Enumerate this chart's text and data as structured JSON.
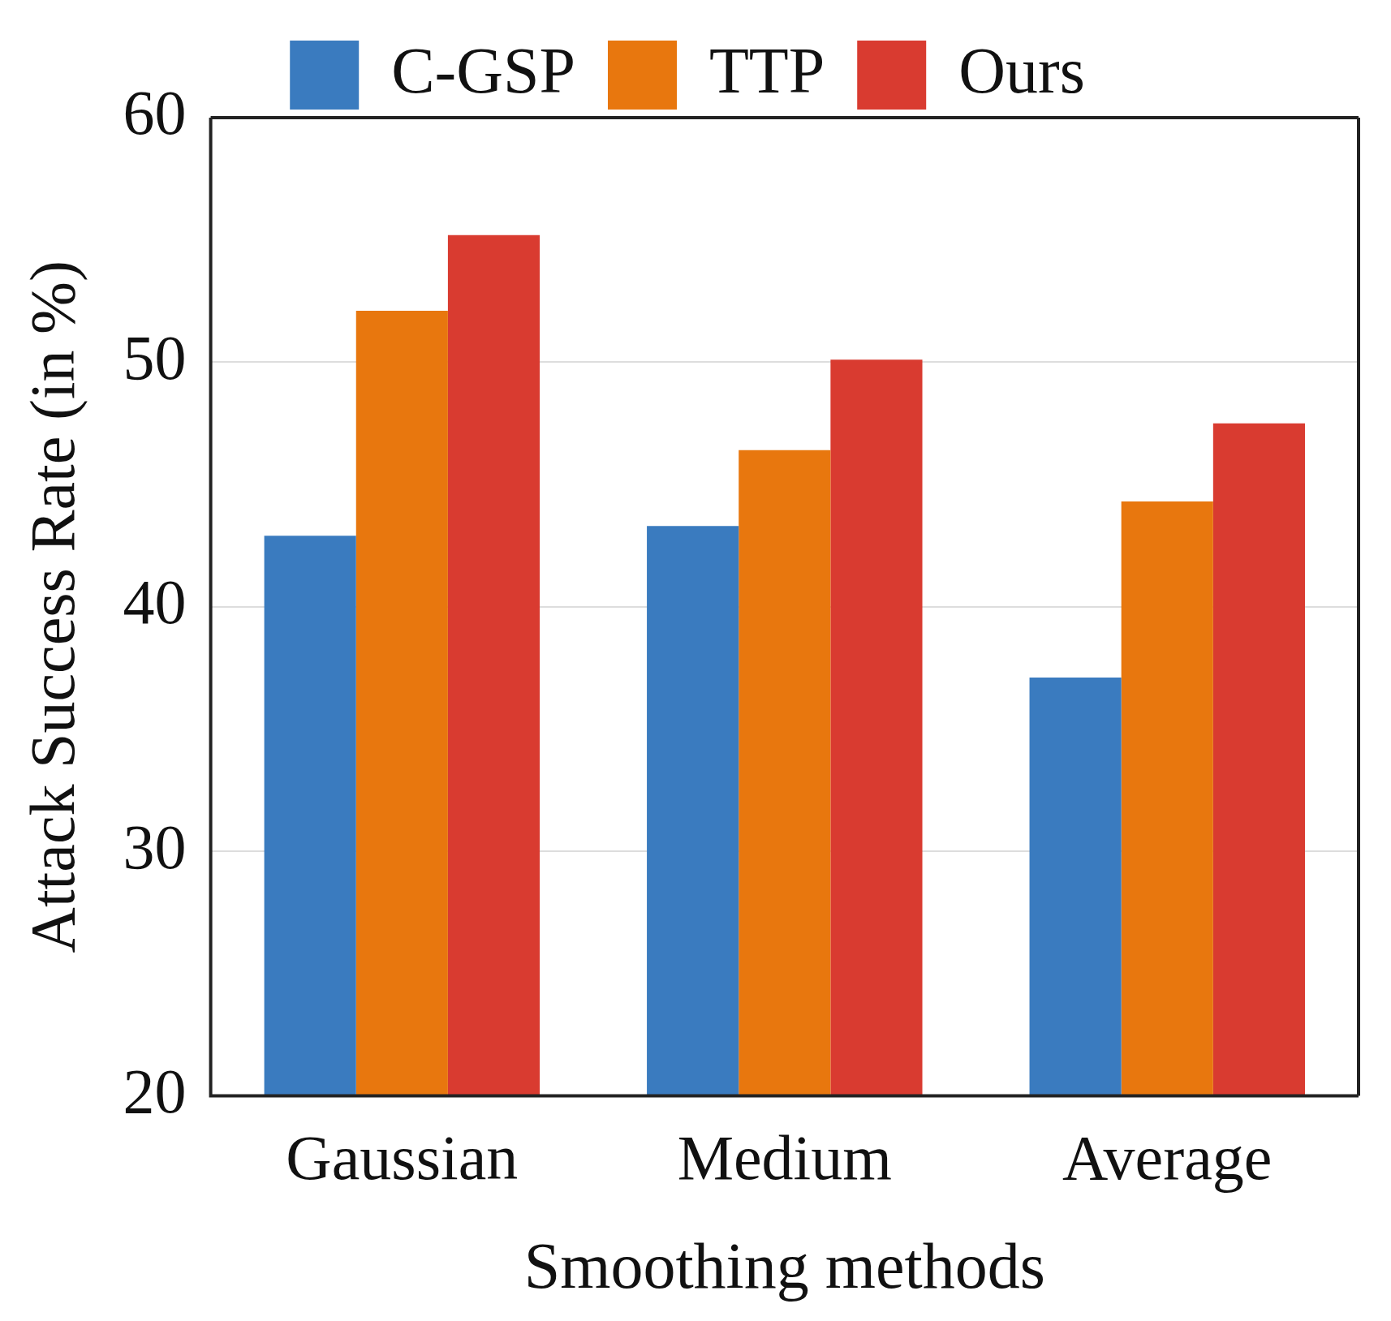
{
  "chart_data": {
    "type": "bar",
    "xlabel": "Smoothing methods",
    "ylabel": "Attack Success Rate (in %)",
    "categories": [
      "Gaussian",
      "Medium",
      "Average"
    ],
    "series": [
      {
        "name": "C-GSP",
        "color": "#3a7bbf",
        "values": [
          42.9,
          43.3,
          37.1
        ]
      },
      {
        "name": "TTP",
        "color": "#e8770e",
        "values": [
          52.1,
          46.4,
          44.3
        ]
      },
      {
        "name": "Ours",
        "color": "#d93b30",
        "values": [
          55.2,
          50.1,
          47.5
        ]
      }
    ],
    "ylim": [
      20,
      60
    ],
    "yticks": [
      20,
      30,
      40,
      50,
      60
    ],
    "grid": "y",
    "legend": "top"
  }
}
